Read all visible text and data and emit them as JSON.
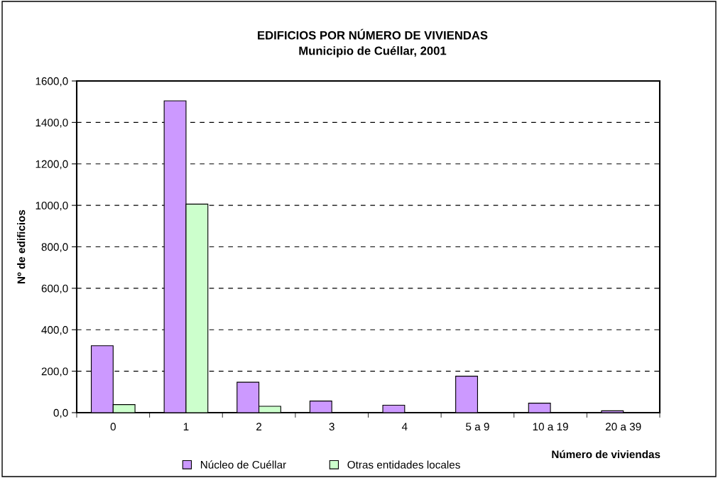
{
  "chart_data": {
    "type": "bar",
    "title": "EDIFICIOS POR NÚMERO DE VIVIENDAS\nMunicipio de Cuéllar, 2001",
    "xlabel": "Número de viviendas",
    "ylabel": "Nº de edificios",
    "categories": [
      "0",
      "1",
      "2",
      "3",
      "4",
      "5 a 9",
      "10 a 19",
      "20 a 39"
    ],
    "series": [
      {
        "name": "Núcleo de Cuéllar",
        "color": "#cc99ff",
        "values": [
          323,
          1504,
          147,
          56,
          36,
          176,
          46,
          9
        ]
      },
      {
        "name": "Otras entidades locales",
        "color": "#ccffcc",
        "values": [
          39,
          1006,
          31,
          null,
          null,
          null,
          null,
          null
        ]
      }
    ],
    "ylim": [
      0,
      1600
    ],
    "yticks": [
      {
        "value": 0,
        "label": "0,0"
      },
      {
        "value": 200,
        "label": "200,0"
      },
      {
        "value": 400,
        "label": "400,0"
      },
      {
        "value": 600,
        "label": "600,0"
      },
      {
        "value": 800,
        "label": "800,0"
      },
      {
        "value": 1000,
        "label": "1000,0"
      },
      {
        "value": 1200,
        "label": "1200,0"
      },
      {
        "value": 1400,
        "label": "1400,0"
      },
      {
        "value": 1600,
        "label": "1600,0"
      }
    ],
    "grid": "y",
    "line_style": "dashed",
    "legend": "bottom"
  }
}
